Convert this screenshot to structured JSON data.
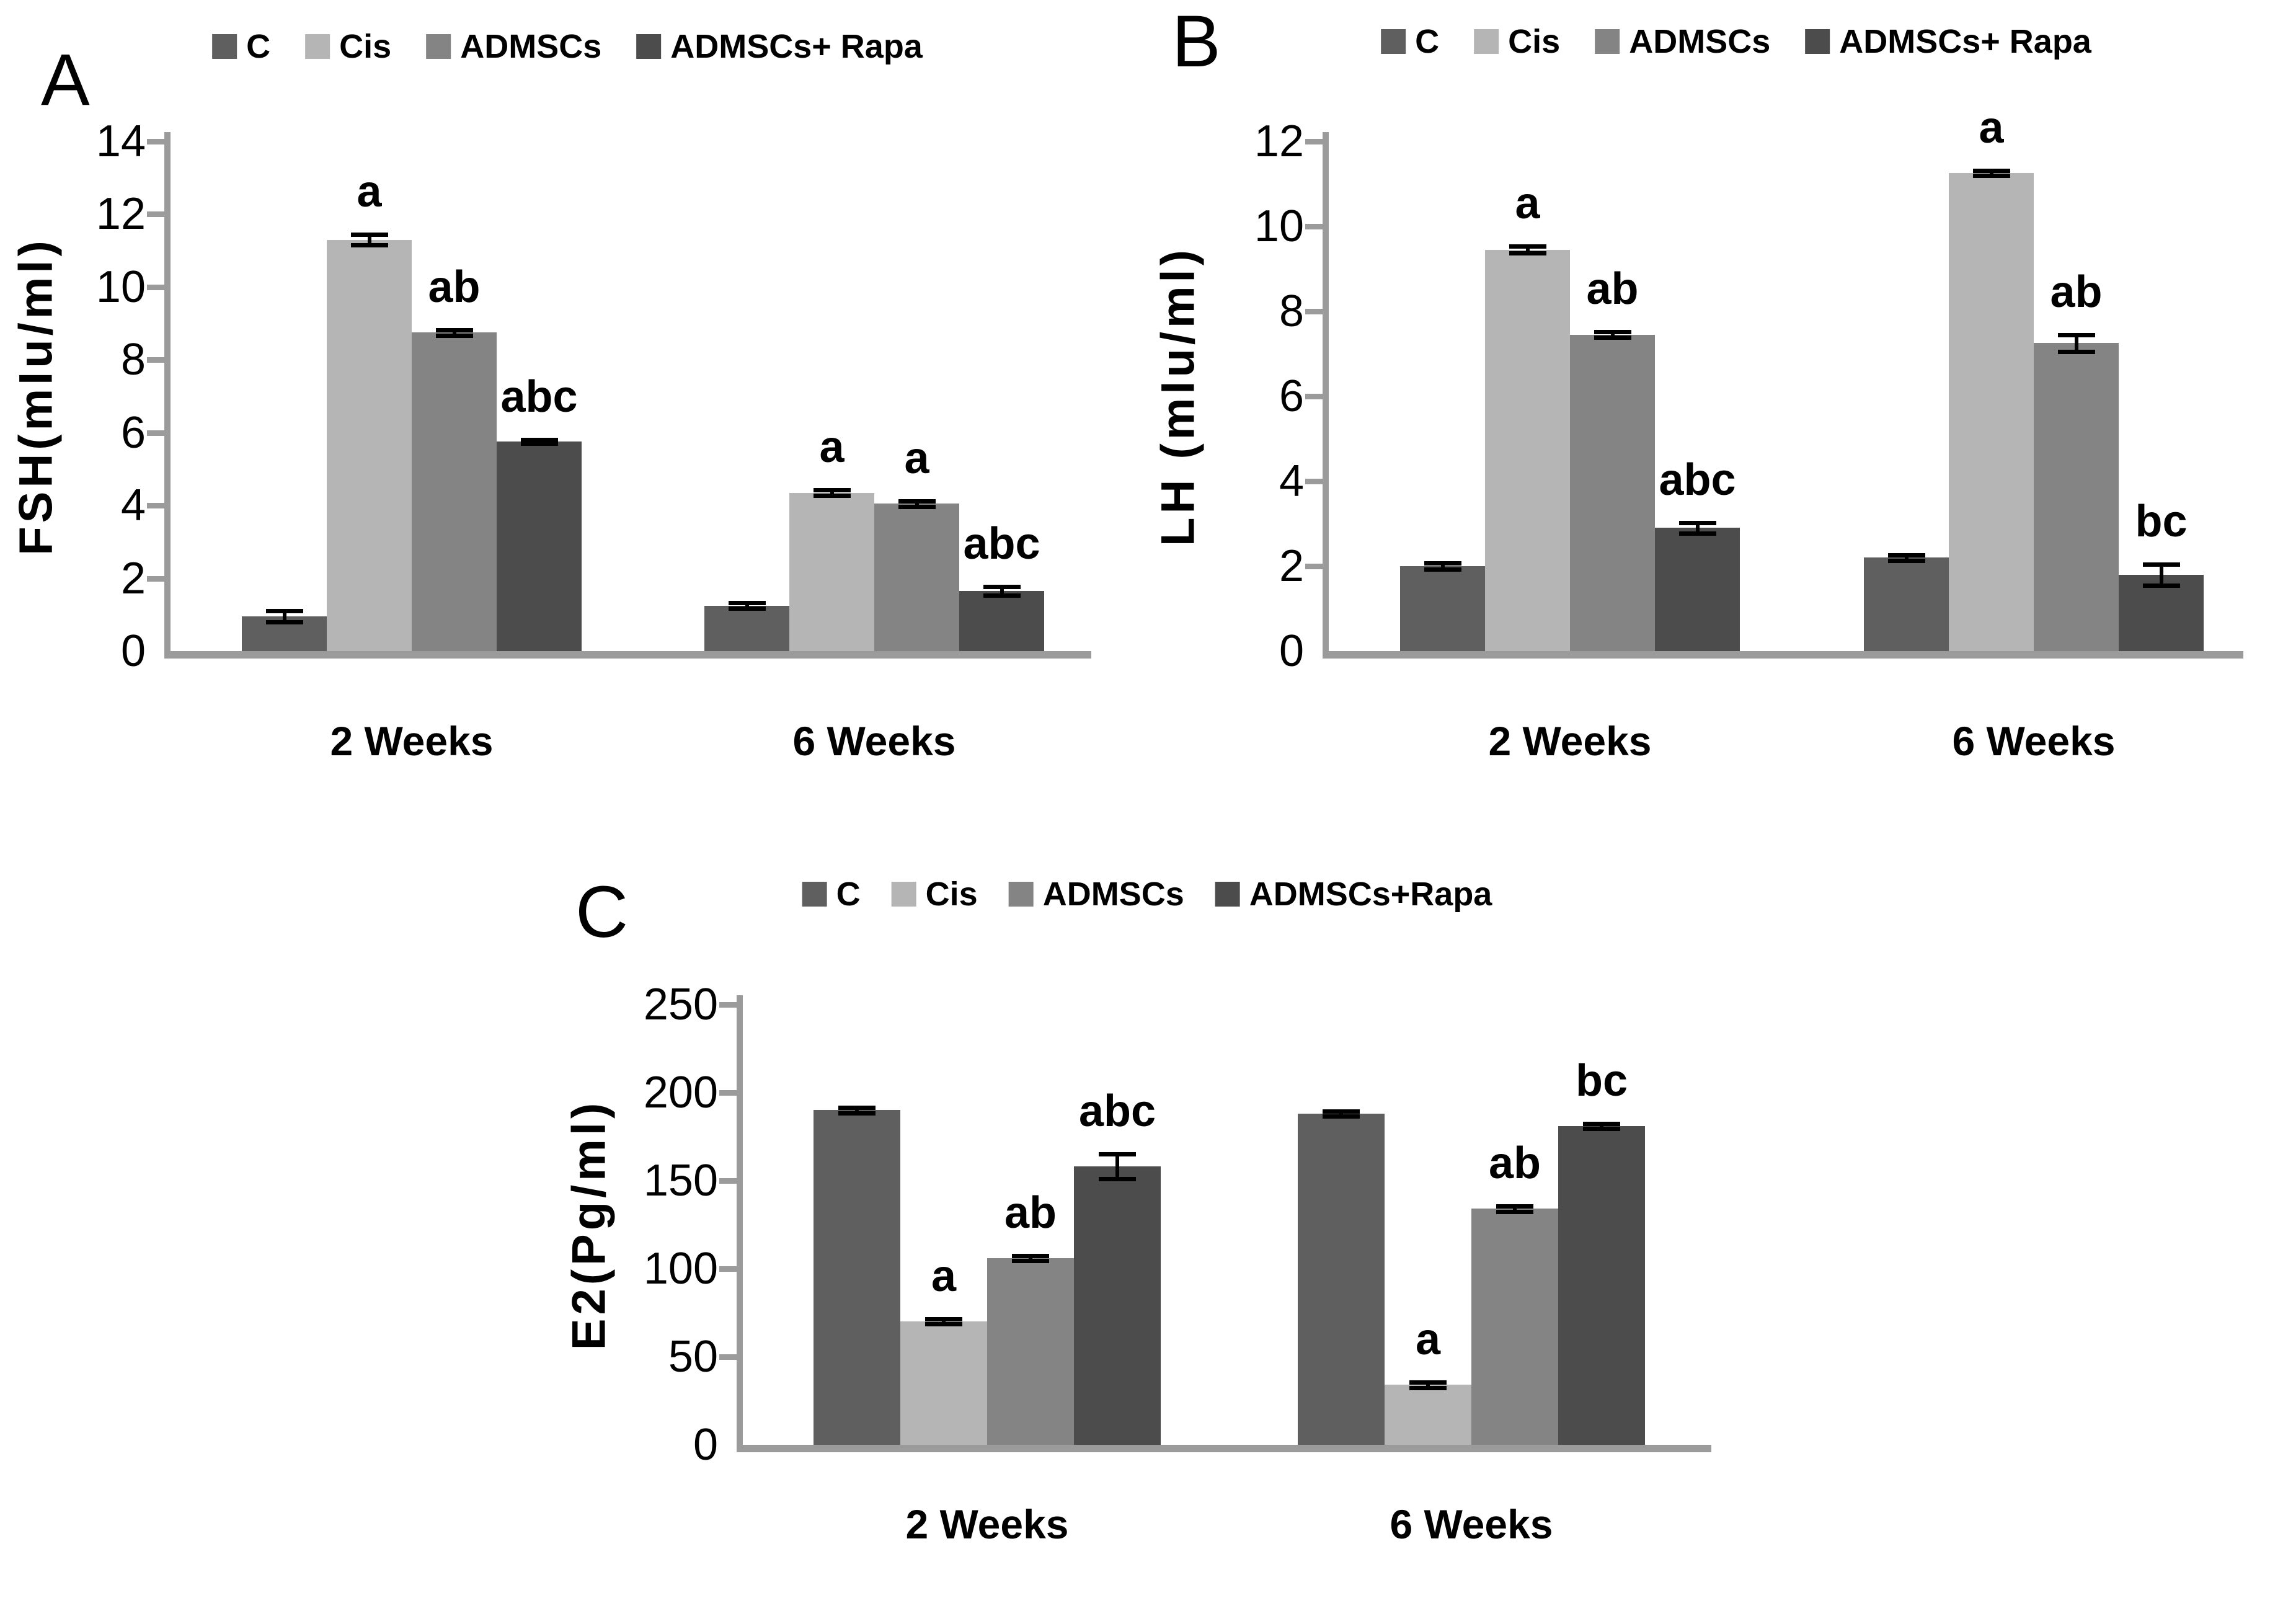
{
  "page": {
    "background": "#ffffff"
  },
  "colors": {
    "axis": "#9b9b9b",
    "text": "#000000",
    "error_bar": "#000000",
    "series": [
      "#5f5f5f",
      "#b5b5b5",
      "#848484",
      "#4c4c4c"
    ]
  },
  "chart_data": [
    {
      "type": "bar",
      "panel": "A",
      "ylabel": "FSH(mIu/ml)",
      "ymax": 14,
      "ystep": 2,
      "yticks": [
        0,
        2,
        4,
        6,
        8,
        10,
        12,
        14
      ],
      "grid": false,
      "legend_position": "top",
      "legend": [
        {
          "label": "C",
          "color": "#5f5f5f"
        },
        {
          "label": "Cis",
          "color": "#b5b5b5"
        },
        {
          "label": "ADMSCs",
          "color": "#848484"
        },
        {
          "label": "ADMSCs+ Rapa",
          "color": "#4c4c4c"
        }
      ],
      "categories": [
        "2 Weeks",
        "6 Weeks"
      ],
      "series": [
        {
          "name": "C",
          "values": [
            0.95,
            1.25
          ],
          "errors": [
            0.15,
            0.07
          ],
          "sig": [
            "",
            ""
          ]
        },
        {
          "name": "Cis",
          "values": [
            11.3,
            4.35
          ],
          "errors": [
            0.15,
            0.07
          ],
          "sig": [
            "a",
            "a"
          ]
        },
        {
          "name": "ADMSCs",
          "values": [
            8.75,
            4.05
          ],
          "errors": [
            0.08,
            0.08
          ],
          "sig": [
            "ab",
            "a"
          ]
        },
        {
          "name": "ADMSCs+ Rapa",
          "values": [
            5.75,
            1.65
          ],
          "errors": [
            0.05,
            0.12
          ],
          "sig": [
            "abc",
            "abc"
          ]
        }
      ]
    },
    {
      "type": "bar",
      "panel": "B",
      "ylabel": "LH (mIu/ml)",
      "ymax": 12,
      "ystep": 2,
      "yticks": [
        0,
        2,
        4,
        6,
        8,
        10,
        12
      ],
      "grid": false,
      "legend_position": "top",
      "legend": [
        {
          "label": "C",
          "color": "#5f5f5f"
        },
        {
          "label": "Cis",
          "color": "#b5b5b5"
        },
        {
          "label": "ADMSCs",
          "color": "#848484"
        },
        {
          "label": "ADMSCs+ Rapa",
          "color": "#4c4c4c"
        }
      ],
      "categories": [
        "2 Weeks",
        "6 Weeks"
      ],
      "series": [
        {
          "name": "C",
          "values": [
            2.0,
            2.2
          ],
          "errors": [
            0.08,
            0.07
          ],
          "sig": [
            "",
            ""
          ]
        },
        {
          "name": "Cis",
          "values": [
            9.45,
            11.25
          ],
          "errors": [
            0.08,
            0.06
          ],
          "sig": [
            "a",
            "a"
          ]
        },
        {
          "name": "ADMSCs",
          "values": [
            7.45,
            7.25
          ],
          "errors": [
            0.07,
            0.2
          ],
          "sig": [
            "ab",
            "ab"
          ]
        },
        {
          "name": "ADMSCs+ Rapa",
          "values": [
            2.9,
            1.8
          ],
          "errors": [
            0.12,
            0.25
          ],
          "sig": [
            "abc",
            "bc"
          ]
        }
      ]
    },
    {
      "type": "bar",
      "panel": "C",
      "ylabel": "E2(Pg/ml)",
      "ymax": 250,
      "ystep": 50,
      "yticks": [
        0,
        50,
        100,
        150,
        200,
        250
      ],
      "grid": false,
      "legend_position": "top",
      "legend": [
        {
          "label": "C",
          "color": "#5f5f5f"
        },
        {
          "label": "Cis",
          "color": "#b5b5b5"
        },
        {
          "label": "ADMSCs",
          "color": "#848484"
        },
        {
          "label": "ADMSCs+Rapa",
          "color": "#4c4c4c"
        }
      ],
      "categories": [
        "2 Weeks",
        "6 Weeks"
      ],
      "series": [
        {
          "name": "C",
          "values": [
            190,
            188
          ],
          "errors": [
            1.5,
            1.5
          ],
          "sig": [
            "",
            ""
          ]
        },
        {
          "name": "Cis",
          "values": [
            70,
            34
          ],
          "errors": [
            1.5,
            1.5
          ],
          "sig": [
            "a",
            "a"
          ]
        },
        {
          "name": "ADMSCs",
          "values": [
            106,
            134
          ],
          "errors": [
            1.5,
            1.5
          ],
          "sig": [
            "ab",
            "ab"
          ]
        },
        {
          "name": "ADMSCs+Rapa",
          "values": [
            158,
            181
          ],
          "errors": [
            7,
            1.5
          ],
          "sig": [
            "abc",
            "bc"
          ]
        }
      ]
    }
  ]
}
